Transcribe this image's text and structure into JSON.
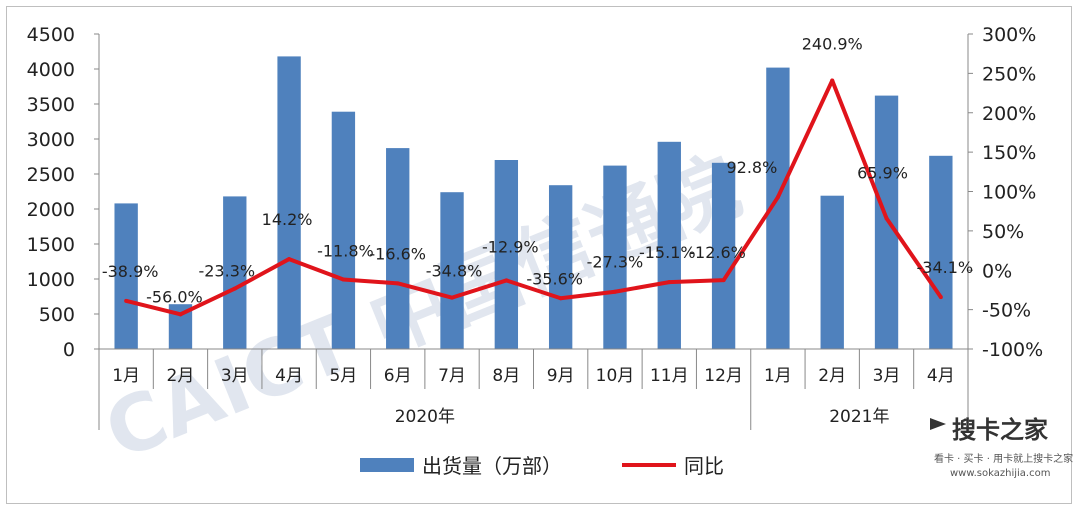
{
  "chart_data": {
    "type": "bar",
    "categories": [
      "1月",
      "2月",
      "3月",
      "4月",
      "5月",
      "6月",
      "7月",
      "8月",
      "9月",
      "10月",
      "11月",
      "12月",
      "1月",
      "2月",
      "3月",
      "4月"
    ],
    "groups": [
      {
        "label": "2020年",
        "count": 12
      },
      {
        "label": "2021年",
        "count": 4
      }
    ],
    "series": [
      {
        "name": "出货量（万部）",
        "kind": "bar",
        "axis": "left",
        "color": "#4f81bd",
        "values": [
          2080,
          640,
          2180,
          4180,
          3390,
          2870,
          2240,
          2700,
          2340,
          2620,
          2960,
          2660,
          4020,
          2190,
          3620,
          2760
        ]
      },
      {
        "name": "同比",
        "kind": "line",
        "axis": "right",
        "color": "#e0141b",
        "values": [
          -38.9,
          -56.0,
          -23.3,
          14.2,
          -11.8,
          -16.6,
          -34.8,
          -12.9,
          -35.6,
          -27.3,
          -15.1,
          -12.6,
          92.8,
          240.9,
          65.9,
          -34.1
        ],
        "data_labels": [
          "-38.9%",
          "-56.0%",
          "-23.3%",
          "14.2%",
          "-11.8%",
          "-16.6%",
          "-34.8%",
          "-12.9%",
          "-35.6%",
          "-27.3%",
          "-15.1%",
          "-12.6%",
          "92.8%",
          "240.9%",
          "65.9%",
          "-34.1%"
        ]
      }
    ],
    "y_left": {
      "min": 0,
      "max": 4500,
      "step": 500,
      "ticks": [
        "0",
        "500",
        "1000",
        "1500",
        "2000",
        "2500",
        "3000",
        "3500",
        "4000",
        "4500"
      ]
    },
    "y_right": {
      "min": -100,
      "max": 300,
      "step": 50,
      "ticks": [
        "-100%",
        "-50%",
        "0%",
        "50%",
        "100%",
        "150%",
        "200%",
        "250%",
        "300%"
      ]
    },
    "legend_position": "bottom",
    "grid": false
  },
  "watermark": {
    "text": "CAICT 中国信通院"
  },
  "site_logo": {
    "name": "搜卡之家",
    "tagline": "看卡 · 买卡 · 用卡就上搜卡之家",
    "url": "www.sokazhijia.com"
  }
}
